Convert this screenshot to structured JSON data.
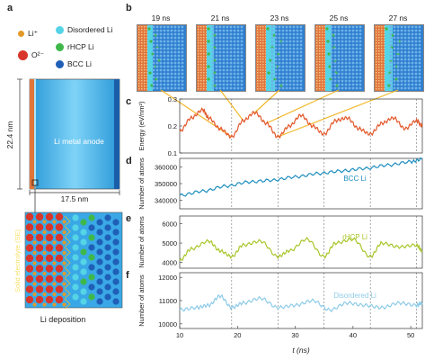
{
  "panels": {
    "a": "a",
    "b": "b",
    "c": "c",
    "d": "d",
    "e": "e",
    "f": "f"
  },
  "legend": {
    "li_plus": "Li⁺",
    "o2_minus": "O²⁻",
    "disordered": "Disordered Li",
    "rhcp": "rHCP Li",
    "bcc": "BCC Li"
  },
  "colors": {
    "li_plus": "#e39a2c",
    "o2_minus": "#d8362a",
    "disordered": "#55d4e6",
    "rhcp": "#3fb84a",
    "bcc": "#1f5fb8",
    "electrolyte": "#e0753a",
    "anode": "#4cb8f0",
    "energy_line": "#e2572a",
    "bcc_line": "#1f8fbf",
    "rhcp_line": "#a8c62a",
    "disordered_line": "#8ecbe8",
    "connector": "#f2b82a"
  },
  "panel_a": {
    "height_label": "22.4 nm",
    "width_label": "17.5 nm",
    "anode_label": "Li metal anode",
    "electrolyte_label": "Solid electrolyte (SE)",
    "caption": "Li deposition"
  },
  "panel_b": {
    "snapshots": [
      "19 ns",
      "21 ns",
      "23 ns",
      "25 ns",
      "27 ns"
    ]
  },
  "chart_data": [
    {
      "type": "line",
      "panel": "c",
      "ylabel": "Energy (eV/nm²)",
      "ylim": [
        0.1,
        0.3
      ],
      "yticks": [
        "0.1",
        "0.2",
        "0.3"
      ],
      "xlim": [
        10,
        52
      ],
      "x": [
        10,
        12,
        14,
        15,
        17,
        19,
        21,
        23,
        25,
        27,
        29,
        31,
        33,
        35,
        37,
        39,
        41,
        43,
        45,
        47,
        49,
        51,
        52
      ],
      "series": [
        {
          "values": [
            0.18,
            0.23,
            0.26,
            0.23,
            0.19,
            0.16,
            0.22,
            0.25,
            0.21,
            0.16,
            0.2,
            0.24,
            0.2,
            0.17,
            0.22,
            0.23,
            0.19,
            0.17,
            0.21,
            0.23,
            0.19,
            0.22,
            0.2
          ]
        }
      ]
    },
    {
      "type": "line",
      "panel": "d",
      "ylabel": "Number of atoms",
      "ylim": [
        335000,
        365000
      ],
      "yticks": [
        "340000",
        "350000",
        "360000"
      ],
      "xlim": [
        10,
        52
      ],
      "x": [
        10,
        14,
        18,
        22,
        26,
        30,
        34,
        38,
        42,
        46,
        50,
        52
      ],
      "series": [
        {
          "name": "BCC Li",
          "values": [
            343000,
            345500,
            348500,
            351000,
            352000,
            354000,
            356000,
            357500,
            359000,
            361000,
            363000,
            364500
          ]
        }
      ]
    },
    {
      "type": "line",
      "panel": "e",
      "ylabel": "Number of atoms",
      "ylim": [
        3700,
        6400
      ],
      "yticks": [
        "4000",
        "5000",
        "6000"
      ],
      "xlim": [
        10,
        52
      ],
      "x": [
        10,
        12,
        15,
        17,
        19,
        21,
        24,
        27,
        29,
        32,
        35,
        37,
        40,
        43,
        45,
        48,
        51,
        52
      ],
      "series": [
        {
          "name": "rHCP Li",
          "values": [
            4100,
            4700,
            5100,
            4600,
            4300,
            4900,
            5100,
            4300,
            4600,
            5200,
            4300,
            5000,
            5200,
            4300,
            5000,
            4800,
            4900,
            4600
          ]
        }
      ]
    },
    {
      "type": "line",
      "panel": "f",
      "ylabel": "Number of atoms",
      "ylim": [
        9800,
        12200
      ],
      "yticks": [
        "10000",
        "11000",
        "12000"
      ],
      "xlim": [
        10,
        52
      ],
      "xticks": [
        "10",
        "20",
        "30",
        "40",
        "50"
      ],
      "xlabel": "t (ns)",
      "x": [
        10,
        13,
        15,
        17,
        19,
        21,
        24,
        27,
        30,
        33,
        36,
        39,
        42,
        45,
        48,
        51,
        52
      ],
      "series": [
        {
          "name": "Disordered Li",
          "values": [
            10600,
            10700,
            10800,
            11200,
            10700,
            10900,
            11100,
            10700,
            10800,
            11000,
            10600,
            10900,
            10800,
            10700,
            10900,
            10800,
            10900
          ]
        }
      ]
    }
  ],
  "vlines_ns": [
    19,
    27,
    35,
    43,
    51
  ]
}
